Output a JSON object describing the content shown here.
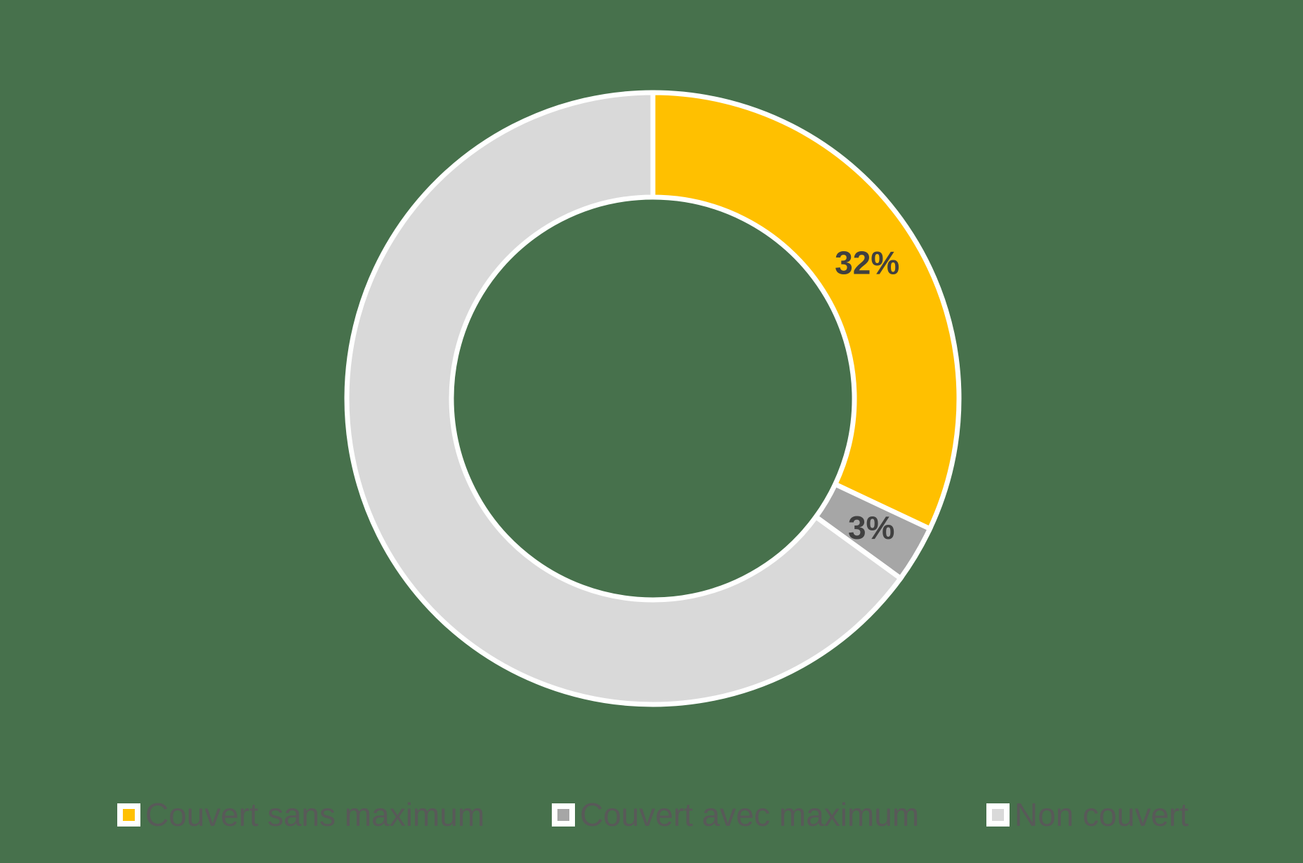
{
  "canvas": {
    "background_color": "#47714C"
  },
  "chart_data": {
    "type": "pie",
    "subtype": "donut",
    "categories": [
      "Couvert sans maximum",
      "Couvert avec maximum",
      "Non couvert"
    ],
    "values": [
      32,
      3,
      65
    ],
    "unit": "%",
    "data_labels": [
      "32%",
      "3%",
      ""
    ],
    "colors": [
      "#FFC000",
      "#A6A6A6",
      "#D9D9D9"
    ],
    "segment_border_color": "#FFFFFF",
    "data_label_color": "#404040",
    "legend_text_color": "#595959",
    "legend_position": "bottom",
    "start_angle_deg": 0,
    "direction": "clockwise",
    "inner_radius_ratio": 0.66
  }
}
